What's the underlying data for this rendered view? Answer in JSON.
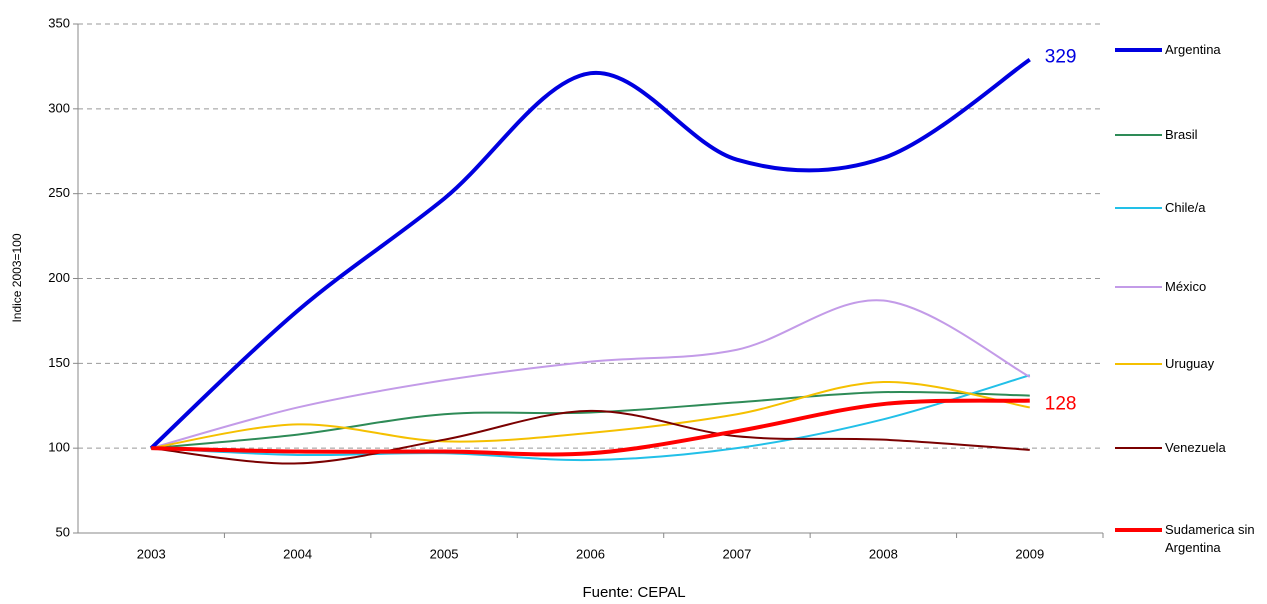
{
  "chart_data": {
    "type": "line",
    "y_label": "Indice 2003=100",
    "source": "Fuente: CEPAL",
    "categories": [
      "2003",
      "2004",
      "2005",
      "2006",
      "2007",
      "2008",
      "2009"
    ],
    "ylim": [
      50,
      350
    ],
    "yticks": [
      50,
      100,
      150,
      200,
      250,
      300,
      350
    ],
    "grid": true,
    "legend": "right",
    "series": [
      {
        "name": "Argentina",
        "color": "#0000e0",
        "width": 4,
        "values": [
          100,
          181,
          247,
          321,
          270,
          271,
          329
        ]
      },
      {
        "name": "Brasil",
        "color": "#2e8b57",
        "width": 2,
        "values": [
          100,
          108,
          120,
          121,
          127,
          133,
          131
        ]
      },
      {
        "name": "Chile/a",
        "color": "#22c0e8",
        "width": 2,
        "values": [
          100,
          96,
          97,
          93,
          100,
          117,
          143
        ]
      },
      {
        "name": "México",
        "color": "#c39be8",
        "width": 2,
        "values": [
          100,
          124,
          140,
          151,
          158,
          187,
          142
        ]
      },
      {
        "name": "Uruguay",
        "color": "#f5c000",
        "width": 2,
        "values": [
          100,
          114,
          104,
          109,
          120,
          139,
          124
        ]
      },
      {
        "name": "Venezuela",
        "color": "#7a0000",
        "width": 2,
        "values": [
          100,
          91,
          105,
          122,
          107,
          105,
          99
        ]
      },
      {
        "name": "Sudamerica sin Argentina",
        "color": "#ff0000",
        "width": 4,
        "values": [
          100,
          98,
          98,
          97,
          110,
          126,
          128
        ]
      }
    ]
  }
}
